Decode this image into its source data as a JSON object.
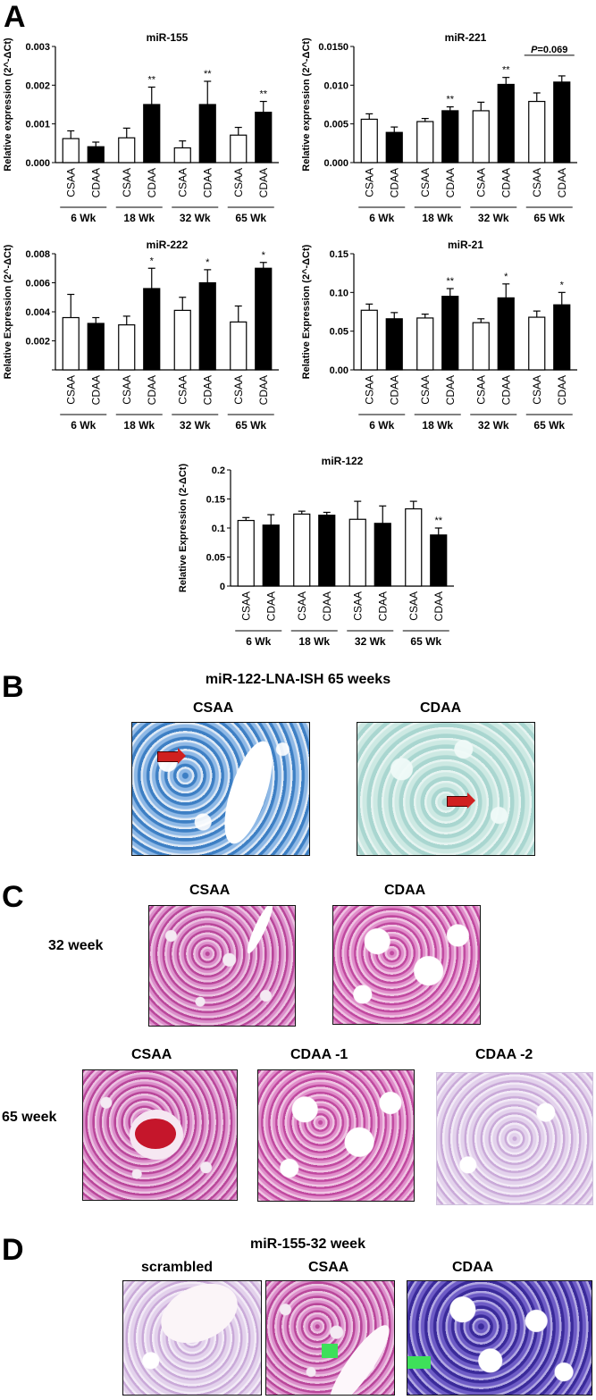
{
  "panels": {
    "a": "A",
    "b": "B",
    "c": "C",
    "d": "D"
  },
  "chart_data": [
    {
      "type": "bar",
      "title": "miR-155",
      "ylabel": "Relative expression (2^-ΔCt)",
      "ylim": [
        0,
        0.003
      ],
      "yticks": [
        "0.000",
        "0.001",
        "0.002",
        "0.003"
      ],
      "groups": [
        "6 Wk",
        "18 Wk",
        "32 Wk",
        "65 Wk"
      ],
      "categories": [
        "CSAA",
        "CDAA",
        "CSAA",
        "CDAA",
        "CSAA",
        "CDAA",
        "CSAA",
        "CDAA"
      ],
      "values": [
        0.00062,
        0.00041,
        0.00064,
        0.0015,
        0.00038,
        0.0015,
        0.00071,
        0.0013
      ],
      "errors": [
        0.0002,
        0.00012,
        0.00025,
        0.00045,
        0.00018,
        0.0006,
        0.0002,
        0.00028
      ],
      "annotations": [
        "",
        "",
        "",
        "**",
        "",
        "**",
        "",
        "**"
      ],
      "colors": [
        "#ffffff",
        "#000000"
      ]
    },
    {
      "type": "bar",
      "title": "miR-221",
      "ylabel": "Relative expression (2^-ΔCt)",
      "ylim": [
        0,
        0.015
      ],
      "yticks": [
        "0.000",
        "0.005",
        "0.010",
        "0.0150"
      ],
      "groups": [
        "6 Wk",
        "18 Wk",
        "32 Wk",
        "65 Wk"
      ],
      "categories": [
        "CSAA",
        "CDAA",
        "CSAA",
        "CDAA",
        "CSAA",
        "CDAA",
        "CSAA",
        "CDAA"
      ],
      "values": [
        0.0056,
        0.0039,
        0.0053,
        0.0067,
        0.0067,
        0.0101,
        0.0079,
        0.0104
      ],
      "errors": [
        0.0007,
        0.0007,
        0.0004,
        0.0005,
        0.0011,
        0.0009,
        0.0011,
        0.0008
      ],
      "annotations": [
        "",
        "",
        "",
        "**",
        "",
        "**",
        "",
        ""
      ],
      "pvalue_label": "=0.069",
      "pvalue_prefix": "P",
      "colors": [
        "#ffffff",
        "#000000"
      ]
    },
    {
      "type": "bar",
      "title": "miR-222",
      "ylabel": "Relative Expression (2^-ΔCt)",
      "ylim": [
        0,
        0.008
      ],
      "yticks": [
        "",
        "0.002",
        "0.004",
        "0.006",
        "0.008"
      ],
      "groups": [
        "6 Wk",
        "18 Wk",
        "32 Wk",
        "65 Wk"
      ],
      "categories": [
        "CSAA",
        "CDAA",
        "CSAA",
        "CDAA",
        "CSAA",
        "CDAA",
        "CSAA",
        "CDAA"
      ],
      "values": [
        0.0036,
        0.0032,
        0.0031,
        0.0056,
        0.0041,
        0.006,
        0.0033,
        0.007
      ],
      "errors": [
        0.0016,
        0.0004,
        0.0006,
        0.0014,
        0.0009,
        0.0009,
        0.0011,
        0.0004
      ],
      "annotations": [
        "",
        "",
        "",
        "*",
        "",
        "*",
        "",
        "*"
      ],
      "colors": [
        "#ffffff",
        "#000000"
      ]
    },
    {
      "type": "bar",
      "title": "miR-21",
      "ylabel": "Relative Expression (2^-ΔCt)",
      "ylim": [
        0,
        0.15
      ],
      "yticks": [
        "0.00",
        "0.05",
        "0.10",
        "0.15"
      ],
      "groups": [
        "6 Wk",
        "18 Wk",
        "32 Wk",
        "65 Wk"
      ],
      "categories": [
        "CSAA",
        "CDAA",
        "CSAA",
        "CDAA",
        "CSAA",
        "CDAA",
        "CSAA",
        "CDAA"
      ],
      "values": [
        0.077,
        0.066,
        0.067,
        0.095,
        0.061,
        0.093,
        0.068,
        0.084
      ],
      "errors": [
        0.008,
        0.008,
        0.005,
        0.01,
        0.005,
        0.018,
        0.008,
        0.016
      ],
      "annotations": [
        "",
        "",
        "",
        "**",
        "",
        "*",
        "",
        "*"
      ],
      "colors": [
        "#ffffff",
        "#000000"
      ]
    },
    {
      "type": "bar",
      "title": "miR-122",
      "ylabel": "Relative Expression (2-ΔCt)",
      "ylim": [
        0,
        0.2
      ],
      "yticks": [
        "0",
        "0.05",
        "0.1",
        "0.15",
        "0.2"
      ],
      "groups": [
        "6 Wk",
        "18 Wk",
        "32 Wk",
        "65 Wk"
      ],
      "categories": [
        "CSAA",
        "CDAA",
        "CSAA",
        "CDAA",
        "CSAA",
        "CDAA",
        "CSAA",
        "CDAA"
      ],
      "values": [
        0.113,
        0.105,
        0.124,
        0.122,
        0.115,
        0.108,
        0.133,
        0.088
      ],
      "errors": [
        0.005,
        0.018,
        0.005,
        0.005,
        0.031,
        0.03,
        0.013,
        0.012
      ],
      "annotations": [
        "",
        "",
        "",
        "",
        "",
        "",
        "",
        "**"
      ],
      "colors": [
        "#ffffff",
        "#000000"
      ]
    }
  ],
  "panel_b": {
    "title": "miR-122-LNA-ISH  65 weeks",
    "left_label": "CSAA",
    "right_label": "CDAA"
  },
  "panel_c": {
    "row1_label": "32 week",
    "row2_label": "65 week",
    "labels_32": [
      "CSAA",
      "CDAA"
    ],
    "labels_65": [
      "CSAA",
      "CDAA -1",
      "CDAA -2"
    ]
  },
  "panel_d": {
    "title": "miR-155-32 week",
    "labels": [
      "scrambled",
      "CSAA",
      "CDAA"
    ]
  }
}
